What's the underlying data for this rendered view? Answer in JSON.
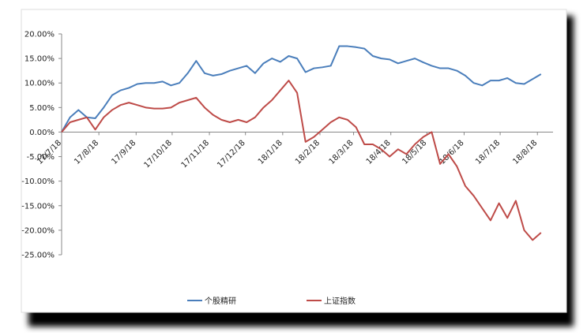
{
  "chart_data": {
    "type": "line",
    "x": [
      "17/7/18",
      "17/7/25",
      "17/8/1",
      "17/8/8",
      "17/8/15",
      "17/8/22",
      "17/8/29",
      "17/9/5",
      "17/9/12",
      "17/9/19",
      "17/9/26",
      "17/10/3",
      "17/10/10",
      "17/10/17",
      "17/10/24",
      "17/10/31",
      "17/11/7",
      "17/11/14",
      "17/11/21",
      "17/11/28",
      "17/12/5",
      "17/12/12",
      "17/12/19",
      "17/12/26",
      "18/1/2",
      "18/1/9",
      "18/1/16",
      "18/1/23",
      "18/1/30",
      "18/2/6",
      "18/2/13",
      "18/2/20",
      "18/2/27",
      "18/3/6",
      "18/3/13",
      "18/3/20",
      "18/3/27",
      "18/4/3",
      "18/4/10",
      "18/4/17",
      "18/4/24",
      "18/5/1",
      "18/5/8",
      "18/5/15",
      "18/5/22",
      "18/5/29",
      "18/6/5",
      "18/6/12",
      "18/6/19",
      "18/6/26",
      "18/7/3",
      "18/7/10",
      "18/7/17",
      "18/7/24",
      "18/7/31",
      "18/8/7",
      "18/8/14",
      "18/8/21"
    ],
    "series": [
      {
        "name": "个股精研",
        "color": "#4a7ebb",
        "values": [
          0,
          3,
          4.5,
          3,
          2.8,
          5,
          7.5,
          8.5,
          9,
          9.8,
          10,
          10,
          10.3,
          9.5,
          10,
          12,
          14.5,
          12,
          11.5,
          11.8,
          12.5,
          13,
          13.5,
          12,
          14,
          15,
          14.3,
          15.5,
          15,
          12.2,
          13,
          13.2,
          13.5,
          17.5,
          17.5,
          17.3,
          17,
          15.5,
          15,
          14.8,
          14,
          14.5,
          15,
          14.2,
          13.5,
          13,
          13,
          12.5,
          11.5,
          10,
          9.5,
          10.5,
          10.5,
          11,
          10,
          9.8,
          10.8,
          11.8
        ]
      },
      {
        "name": "上证指数",
        "color": "#be4b48",
        "values": [
          0,
          2,
          2.5,
          3,
          0.5,
          3,
          4.5,
          5.5,
          6,
          5.5,
          5,
          4.8,
          4.8,
          5,
          6,
          6.5,
          7,
          5,
          3.5,
          2.5,
          2,
          2.5,
          2,
          3,
          5,
          6.5,
          8.5,
          10.5,
          8,
          -2,
          -1,
          0.5,
          2,
          3,
          2.5,
          1,
          -2.5,
          -2.5,
          -3.5,
          -5,
          -3.5,
          -4.5,
          -2.5,
          -1,
          0,
          -6.5,
          -4.5,
          -7,
          -11,
          -13,
          -15.5,
          -18,
          -14.5,
          -17.5,
          -14,
          -20,
          -22,
          -20.5
        ]
      }
    ],
    "xlim": [
      "17/7/18",
      "18/8/31"
    ],
    "xticks": [
      "17/7/18",
      "17/8/18",
      "17/9/18",
      "17/10/18",
      "17/11/18",
      "17/12/18",
      "18/1/18",
      "18/2/18",
      "18/3/18",
      "18/4/18",
      "18/5/18",
      "18/6/18",
      "18/7/18",
      "18/8/18"
    ],
    "ylim": [
      -25,
      20
    ],
    "yticks": [
      {
        "value": 20,
        "label": "20.00%"
      },
      {
        "value": 15,
        "label": "15.00%"
      },
      {
        "value": 10,
        "label": "10.00%"
      },
      {
        "value": 5,
        "label": "5.00%"
      },
      {
        "value": 0,
        "label": "0.00%"
      },
      {
        "value": -5,
        "label": "-5.00%"
      },
      {
        "value": -10,
        "label": "-10.00%"
      },
      {
        "value": -15,
        "label": "-15.00%"
      },
      {
        "value": -20,
        "label": "-20.00%"
      },
      {
        "value": -25,
        "label": "-25.00%"
      }
    ],
    "legend": "bottom"
  }
}
